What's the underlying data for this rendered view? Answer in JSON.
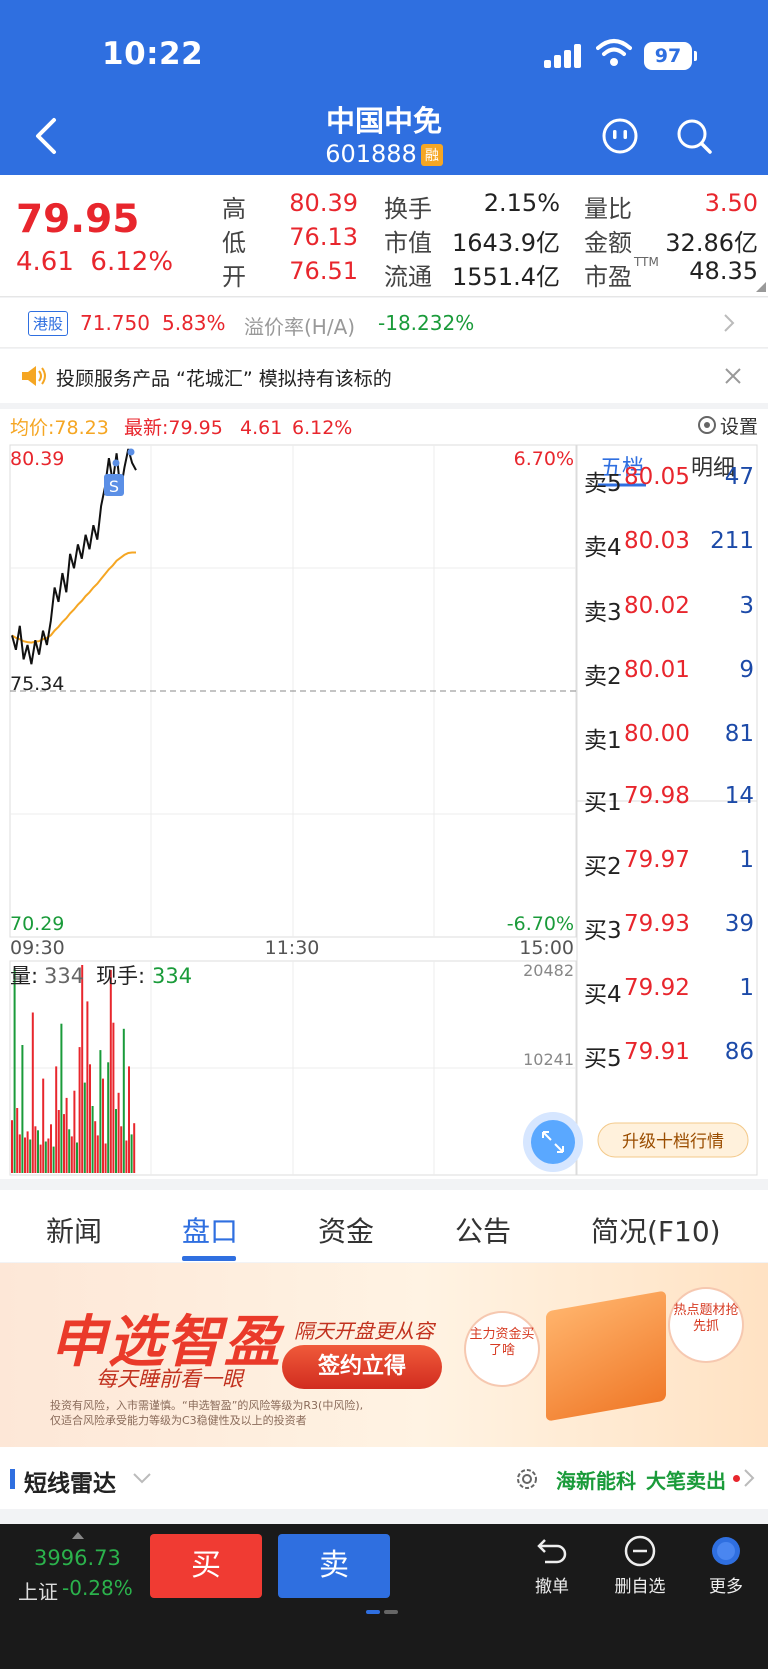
{
  "status_bar": {
    "time": "10:22",
    "battery": "97"
  },
  "header": {
    "title": "中国中免",
    "code": "601888",
    "badge": "融"
  },
  "quote": {
    "price": "79.95",
    "change": "4.61",
    "change_pct": "6.12%",
    "stats": [
      {
        "label": "高",
        "value": "80.39",
        "color": "red"
      },
      {
        "label": "换手",
        "value": "2.15%",
        "color": "dark"
      },
      {
        "label": "量比",
        "value": "3.50",
        "color": "red"
      },
      {
        "label": "低",
        "value": "76.13",
        "color": "red"
      },
      {
        "label": "市值",
        "value": "1643.9亿",
        "color": "dark"
      },
      {
        "label": "金额",
        "value": "32.86亿",
        "color": "dark"
      },
      {
        "label": "开",
        "value": "76.51",
        "color": "red"
      },
      {
        "label": "流通",
        "value": "1551.4亿",
        "color": "dark"
      },
      {
        "label": "市盈",
        "value": "48.35",
        "color": "dark",
        "sup": "TTM"
      }
    ]
  },
  "hk": {
    "badge": "港股",
    "price": "71.750",
    "pct": "5.83%",
    "premium_label": "溢价率(H/A)",
    "premium": "-18.232%"
  },
  "notice": {
    "text": "投顾服务产品 “花城汇” 模拟持有该标的"
  },
  "chart": {
    "avg_label": "均价:78.23",
    "latest_label": "最新:79.95",
    "latest_chg": "4.61",
    "latest_pct": "6.12%",
    "settings_label": "设置",
    "y_top": "80.39",
    "y_mid": "75.34",
    "y_bottom": "70.29",
    "pct_top": "6.70%",
    "pct_bottom": "-6.70%",
    "time_start": "09:30",
    "time_mid": "11:30",
    "time_end": "15:00",
    "marker": "S",
    "vol_label": "量:",
    "vol_value": "334",
    "hand_label": "现手:",
    "hand_value": "334",
    "vol_max": "20482",
    "vol_mid": "10241"
  },
  "chart_data": {
    "type": "line",
    "title": "",
    "xlabel": "",
    "ylabel": "",
    "ylim": [
      70.29,
      80.39
    ],
    "prev_close": 75.34,
    "x_ticks": [
      "09:30",
      "11:30",
      "15:00"
    ],
    "series": [
      {
        "values": [
          76.5,
          76.2,
          76.7,
          76.0,
          76.3,
          75.9,
          76.4,
          76.1,
          76.6,
          76.3,
          76.8,
          77.5,
          77.2,
          77.8,
          77.4,
          78.2,
          77.9,
          78.4,
          78.1,
          78.6,
          78.3,
          78.8,
          78.5,
          79.2,
          79.6,
          80.2,
          79.7,
          80.3,
          79.5,
          80.0,
          80.39,
          80.1,
          79.95
        ]
      },
      {
        "values": [
          76.5,
          76.45,
          76.42,
          76.38,
          76.36,
          76.35,
          76.37,
          76.38,
          76.42,
          76.45,
          76.5,
          76.6,
          76.68,
          76.78,
          76.86,
          76.96,
          77.04,
          77.14,
          77.22,
          77.32,
          77.4,
          77.5,
          77.58,
          77.68,
          77.78,
          77.88,
          77.96,
          78.06,
          78.12,
          78.18,
          78.22,
          78.23,
          78.23
        ]
      }
    ],
    "volume": {
      "ylim": [
        0,
        20482
      ],
      "bars": [
        5200,
        20100,
        6400,
        3800,
        12600,
        3500,
        4100,
        3300,
        15800,
        4600,
        4200,
        2800,
        9300,
        3100,
        3400,
        4800,
        2600,
        10500,
        6200,
        14700,
        5800,
        7400,
        4300,
        3600,
        8100,
        3000,
        12400,
        20482,
        8900,
        16900,
        10700,
        6600,
        5100,
        3700,
        12100,
        9300,
        2900,
        10900,
        20000,
        14800,
        6300,
        7900,
        4600,
        14200,
        3200,
        10500,
        3800,
        4900
      ]
    }
  },
  "order_book": {
    "tabs": [
      "五档",
      "明细"
    ],
    "asks": [
      {
        "label": "卖5",
        "price": "80.05",
        "vol": "47"
      },
      {
        "label": "卖4",
        "price": "80.03",
        "vol": "211"
      },
      {
        "label": "卖3",
        "price": "80.02",
        "vol": "3"
      },
      {
        "label": "卖2",
        "price": "80.01",
        "vol": "9"
      },
      {
        "label": "卖1",
        "price": "80.00",
        "vol": "81"
      }
    ],
    "bids": [
      {
        "label": "买1",
        "price": "79.98",
        "vol": "14"
      },
      {
        "label": "买2",
        "price": "79.97",
        "vol": "1"
      },
      {
        "label": "买3",
        "price": "79.93",
        "vol": "39"
      },
      {
        "label": "买4",
        "price": "79.92",
        "vol": "1"
      },
      {
        "label": "买5",
        "price": "79.91",
        "vol": "86"
      }
    ],
    "upgrade_label": "升级十档行情"
  },
  "tabs": [
    "新闻",
    "盘口",
    "资金",
    "公告",
    "简况(F10)"
  ],
  "banner": {
    "title": "申选智盈",
    "subtitle": "每天睡前看一眼",
    "line1": "隔天开盘更从容",
    "button": "签约立得",
    "bubble1": "主力资金买了啥",
    "bubble2": "热点题材抢先抓",
    "risk1": "投资有风险，入市需谨慎。“申选智盈”的风险等级为R3(中风险),",
    "risk2": "仅适合风险承受能力等级为C3稳健性及以上的投资者"
  },
  "radar": {
    "title": "短线雷达",
    "stock": "海新能科",
    "signal": "大笔卖出"
  },
  "bottom": {
    "index_value": "3996.73",
    "index_name": "上证",
    "index_pct": "-0.28%",
    "buy": "买",
    "sell": "卖",
    "tool_cancel": "撤单",
    "tool_remove": "删自选",
    "tool_more": "更多"
  },
  "colors": {
    "brand": "#2f6fe0",
    "up": "#e8262d",
    "down": "#1a9b3a",
    "avg": "#f5a623"
  }
}
